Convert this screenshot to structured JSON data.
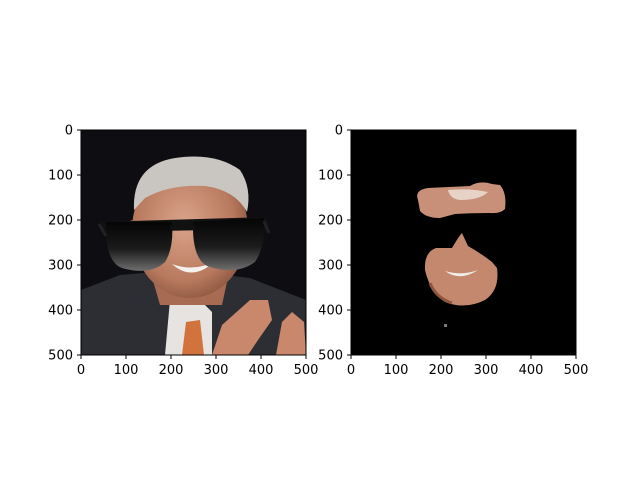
{
  "chart_data": [
    {
      "type": "image",
      "panel": "left",
      "content": "photo of a grey-haired man in a dark suit with an orange tie and a photoshopped pair of black sunglasses over the eyes",
      "xlim": [
        0,
        500
      ],
      "ylim": [
        500,
        0
      ],
      "x_ticks": [
        "0",
        "100",
        "200",
        "300",
        "400",
        "500"
      ],
      "y_ticks": [
        "0",
        "100",
        "200",
        "300",
        "400",
        "500"
      ],
      "title": "",
      "xlabel": "",
      "ylabel": ""
    },
    {
      "type": "image",
      "panel": "right",
      "content": "same image masked to black except the skin regions of the face (forehead band and lower face), the sunglasses area is black",
      "xlim": [
        0,
        500
      ],
      "ylim": [
        500,
        0
      ],
      "x_ticks": [
        "0",
        "100",
        "200",
        "300",
        "400",
        "500"
      ],
      "y_ticks": [
        "0",
        "100",
        "200",
        "300",
        "400",
        "500"
      ],
      "title": "",
      "xlabel": "",
      "ylabel": ""
    }
  ],
  "colors": {
    "background": "#0e0d12",
    "hair": "#c9c6c1",
    "skin": "#c79079",
    "skin_shadow": "#8a5540",
    "suit": "#2d2e33",
    "shirt": "#e6e3e0",
    "tie": "#d2733d",
    "lens": "#1d1d1d",
    "mask_black": "#000000"
  }
}
